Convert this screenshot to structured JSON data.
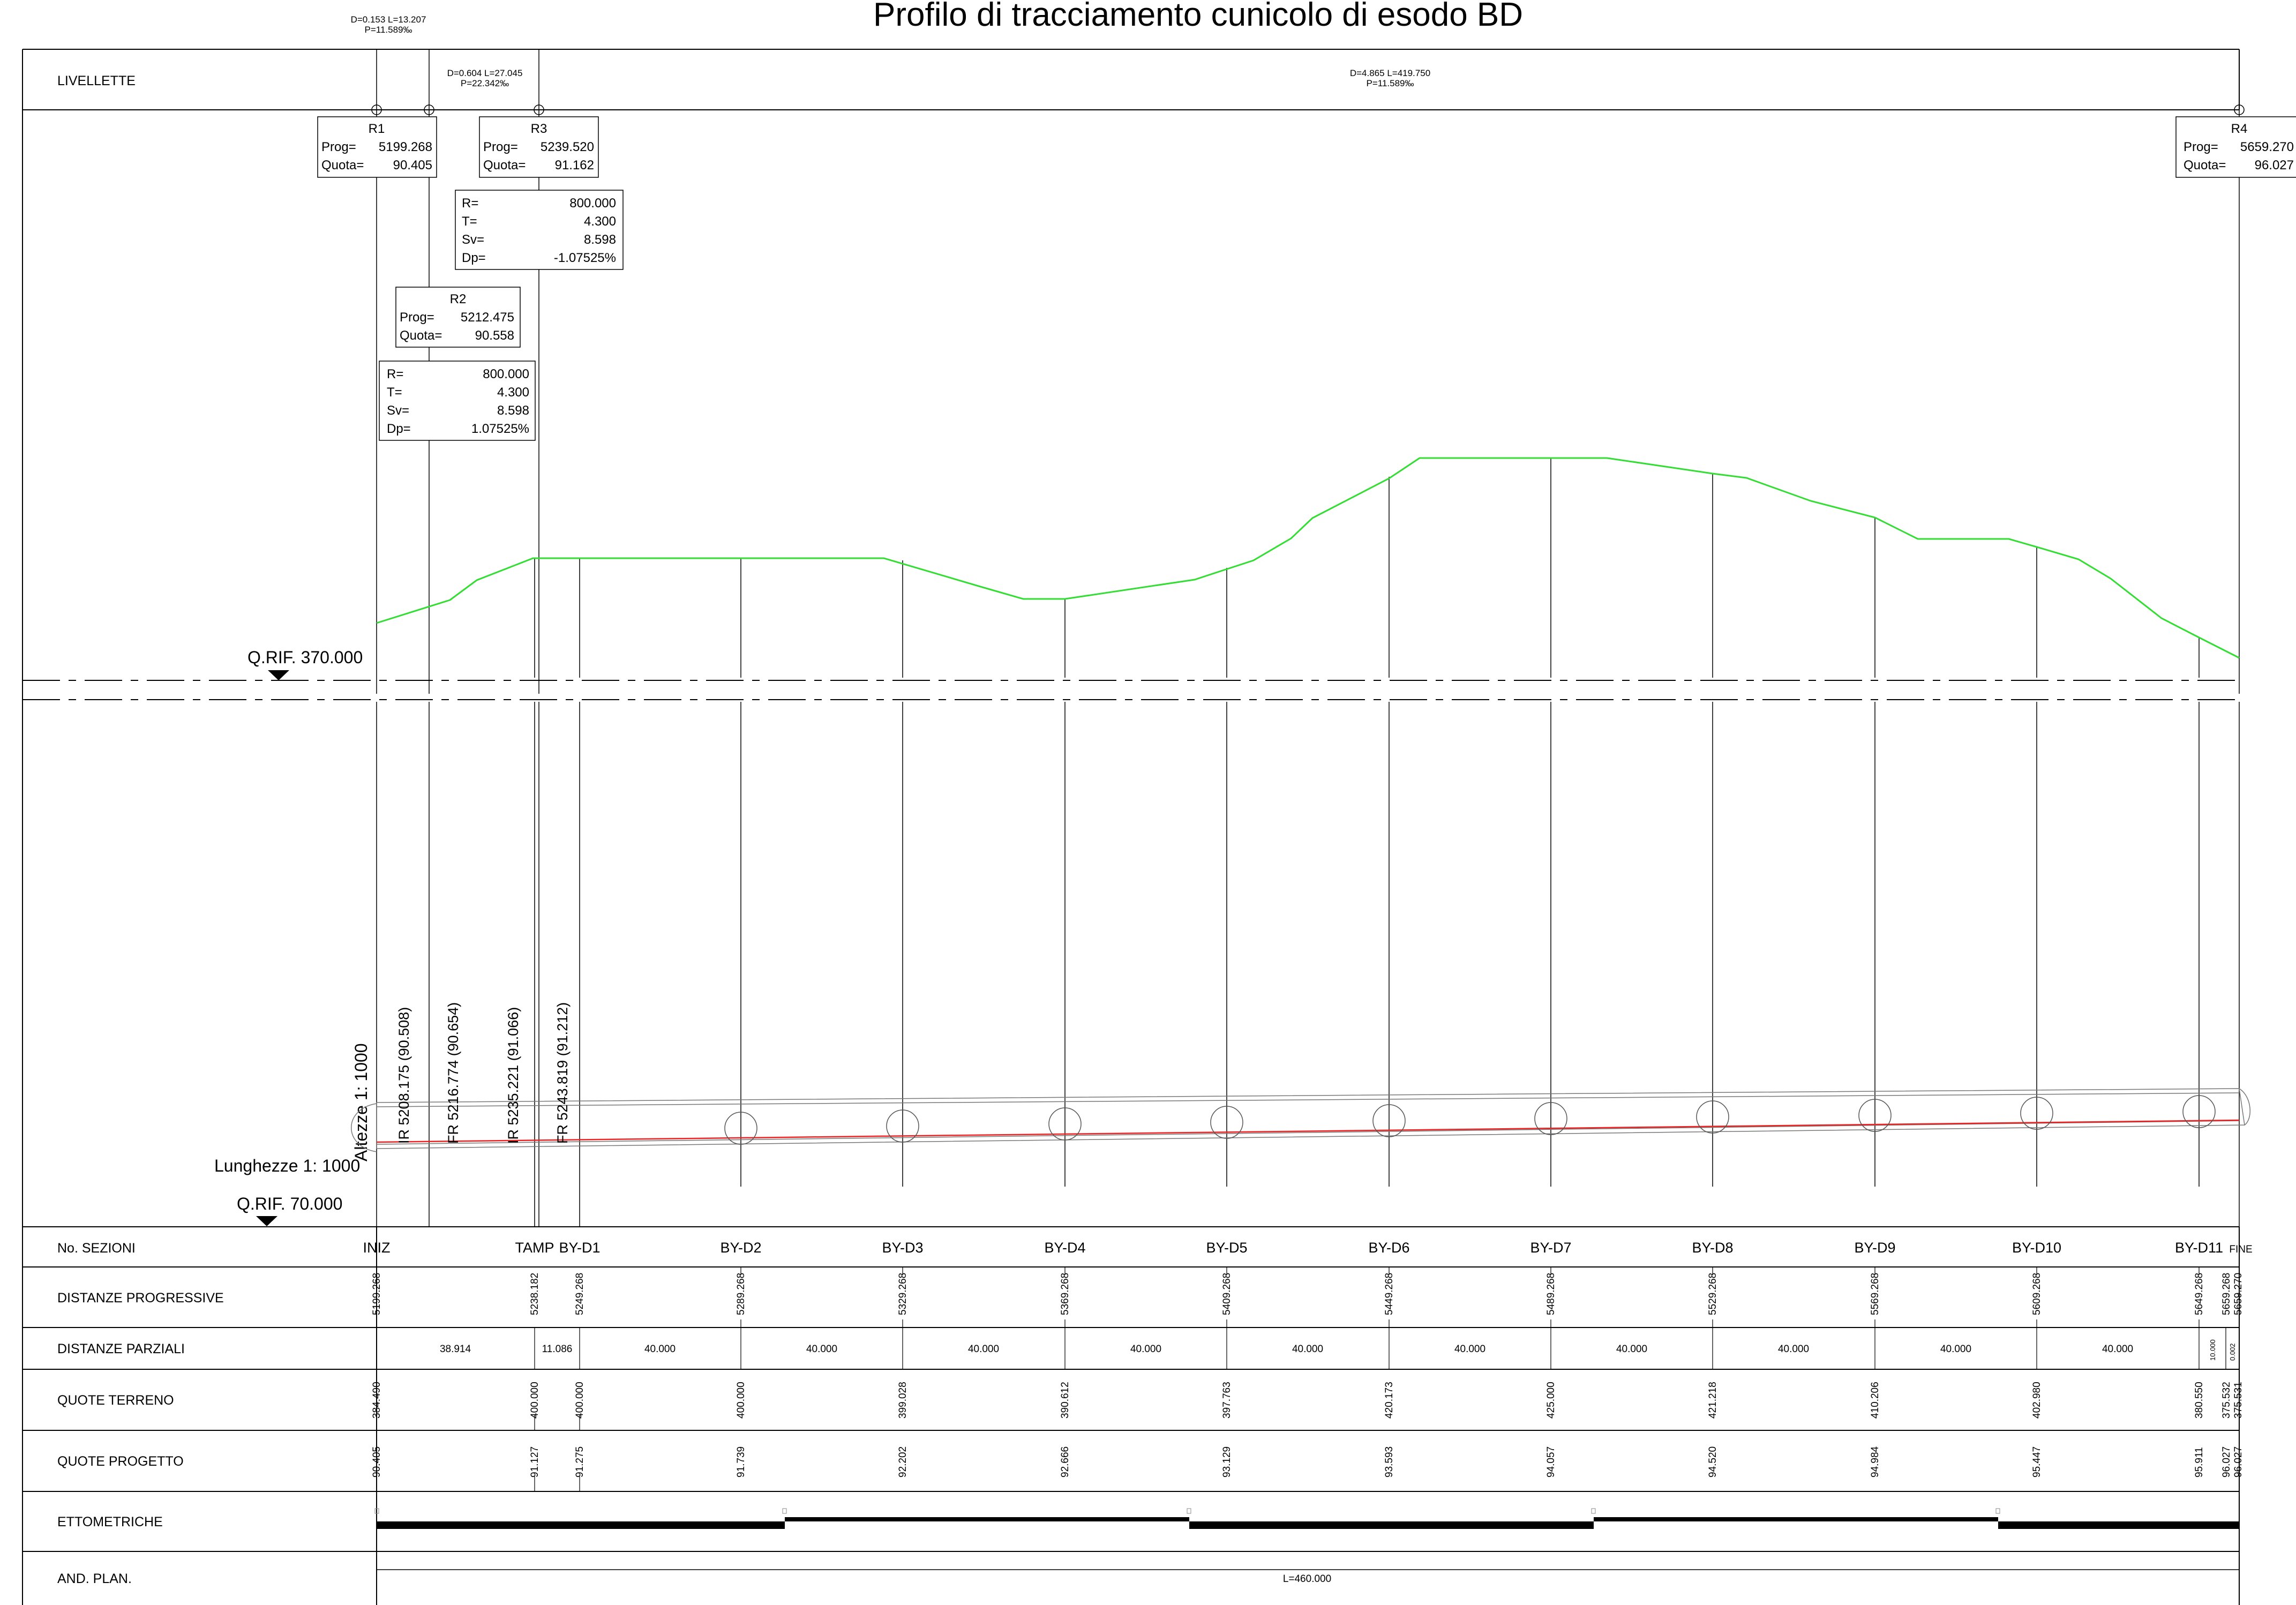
{
  "title": "Profilo di tracciamento cunicolo di esodo BD",
  "livellette": {
    "label": "LIVELLETTE",
    "segments": [
      {
        "d": "D=0.153 L=13.207",
        "p": "P=11.589‰"
      },
      {
        "d": "D=0.604 L=27.045",
        "p": "P=22.342‰"
      },
      {
        "d": "D=4.865 L=419.750",
        "p": "P=11.589‰"
      }
    ]
  },
  "vertices": [
    {
      "name": "R1",
      "prog": "5199.268",
      "quota": "90.405"
    },
    {
      "name": "R2",
      "prog": "5212.475",
      "quota": "90.558"
    },
    {
      "name": "R3",
      "prog": "5239.520",
      "quota": "91.162"
    },
    {
      "name": "R4",
      "prog": "5659.270",
      "quota": "96.027"
    }
  ],
  "vertex_labels": {
    "prog": "Prog=",
    "quota": "Quota="
  },
  "curves": [
    {
      "r": "800.000",
      "t": "4.300",
      "sv": "8.598",
      "dp": "-1.07525%"
    },
    {
      "r": "800.000",
      "t": "4.300",
      "sv": "8.598",
      "dp": "1.07525%"
    }
  ],
  "curve_labels": {
    "r": "R=",
    "t": "T=",
    "sv": "Sv=",
    "dp": "Dp="
  },
  "reference": {
    "upper": "Q.RIF. 370.000",
    "lower": "Q.RIF. 70.000",
    "scale_heights": "Altezze 1: 1000",
    "scale_lengths": "Lunghezze 1: 1000"
  },
  "markers": [
    "IR  5208.175  (90.508)",
    "FR  5216.774  (90.654)",
    "IR  5235.221  (91.066)",
    "FR  5243.819  (91.212)"
  ],
  "table": {
    "rows": {
      "sezioni": "No. SEZIONI",
      "progressive": "DISTANZE PROGRESSIVE",
      "parziali": "DISTANZE PARZIALI",
      "terreno": "QUOTE TERRENO",
      "progetto": "QUOTE PROGETTO",
      "ettometriche": "ETTOMETRICHE",
      "and_plan": "AND. PLAN."
    },
    "sections": [
      {
        "name": "INIZ",
        "prog": "5199.268",
        "terreno": "384.490",
        "progetto": "90.405"
      },
      {
        "name": "TAMP",
        "prog": "5238.182",
        "terreno": "400.000",
        "progetto": "91.127"
      },
      {
        "name": "BY-D1",
        "prog": "5249.268",
        "terreno": "400.000",
        "progetto": "91.275"
      },
      {
        "name": "BY-D2",
        "prog": "5289.268",
        "terreno": "400.000",
        "progetto": "91.739"
      },
      {
        "name": "BY-D3",
        "prog": "5329.268",
        "terreno": "399.028",
        "progetto": "92.202"
      },
      {
        "name": "BY-D4",
        "prog": "5369.268",
        "terreno": "390.612",
        "progetto": "92.666"
      },
      {
        "name": "BY-D5",
        "prog": "5409.268",
        "terreno": "397.763",
        "progetto": "93.129"
      },
      {
        "name": "BY-D6",
        "prog": "5449.268",
        "terreno": "420.173",
        "progetto": "93.593"
      },
      {
        "name": "BY-D7",
        "prog": "5489.268",
        "terreno": "425.000",
        "progetto": "94.057"
      },
      {
        "name": "BY-D8",
        "prog": "5529.268",
        "terreno": "421.218",
        "progetto": "94.520"
      },
      {
        "name": "BY-D9",
        "prog": "5569.268",
        "terreno": "410.206",
        "progetto": "94.984"
      },
      {
        "name": "BY-D10",
        "prog": "5609.268",
        "terreno": "402.980",
        "progetto": "95.447"
      },
      {
        "name": "BY-D11",
        "prog": "5649.268",
        "terreno": "380.550",
        "progetto": "95.911"
      },
      {
        "name": "",
        "prog": "5659.268",
        "terreno": "375.532",
        "progetto": "96.027"
      },
      {
        "name": "FINE",
        "prog": "5659.270",
        "terreno": "375.531",
        "progetto": "96.027"
      }
    ],
    "parziali": [
      "38.914",
      "11.086",
      "40.000",
      "40.000",
      "40.000",
      "40.000",
      "40.000",
      "40.000",
      "40.000",
      "40.000",
      "40.000",
      "40.000",
      "10.000",
      "0.002"
    ],
    "and_plan": "L=460.000"
  },
  "colors": {
    "terrain": "#33dd33",
    "axis": "#ee2222",
    "lines": "#000000"
  }
}
